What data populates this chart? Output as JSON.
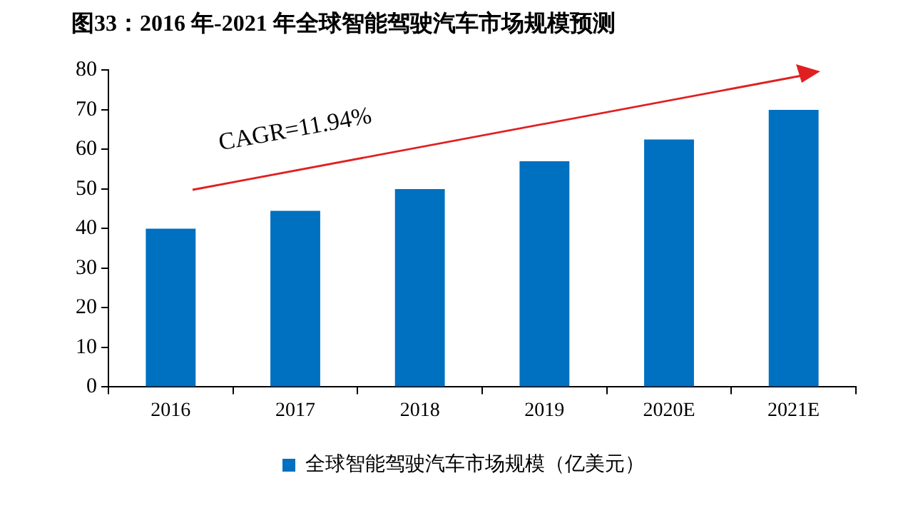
{
  "chart_data": {
    "type": "bar",
    "title": "图33：2016 年-2021 年全球智能驾驶汽车市场规模预测",
    "categories": [
      "2016",
      "2017",
      "2018",
      "2019",
      "2020E",
      "2021E"
    ],
    "series": [
      {
        "name": "全球智能驾驶汽车市场规模（亿美元）",
        "color": "#0070c0",
        "values": [
          40,
          44.5,
          50,
          57,
          62.5,
          70
        ]
      }
    ],
    "ylim": [
      0,
      80
    ],
    "yticks": [
      0,
      10,
      20,
      30,
      40,
      50,
      60,
      70,
      80
    ],
    "grid": false,
    "legend": "bottom",
    "annotations": [
      "CAGR=11.94%"
    ]
  }
}
